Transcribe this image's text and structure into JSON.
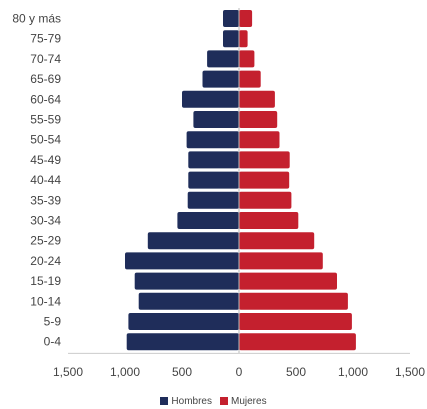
{
  "chart_data": {
    "type": "bar",
    "orientation": "horizontal",
    "layout": "population-pyramid",
    "categories": [
      "0-4",
      "5-9",
      "10-14",
      "15-19",
      "20-24",
      "25-29",
      "30-34",
      "35-39",
      "40-44",
      "45-49",
      "50-54",
      "55-59",
      "60-64",
      "65-69",
      "70-74",
      "75-79",
      "80 y más"
    ],
    "series": [
      {
        "name": "Hombres",
        "color": "#1f2d5a",
        "side": "left",
        "values": [
          985,
          970,
          880,
          915,
          1000,
          800,
          540,
          450,
          445,
          445,
          460,
          400,
          500,
          320,
          280,
          140,
          140
        ]
      },
      {
        "name": "Mujeres",
        "color": "#c4202e",
        "side": "right",
        "values": [
          1025,
          990,
          955,
          860,
          735,
          660,
          520,
          460,
          440,
          445,
          355,
          335,
          315,
          190,
          135,
          75,
          115
        ]
      }
    ],
    "xlim": [
      -1500,
      1500
    ],
    "xticks": [
      -1500,
      -1000,
      -500,
      0,
      500,
      1000,
      1500
    ],
    "xtick_labels": [
      "1,500",
      "1,000",
      "500",
      "0",
      "500",
      "1,000",
      "1,500"
    ],
    "grid": false,
    "legend_position": "bottom"
  }
}
